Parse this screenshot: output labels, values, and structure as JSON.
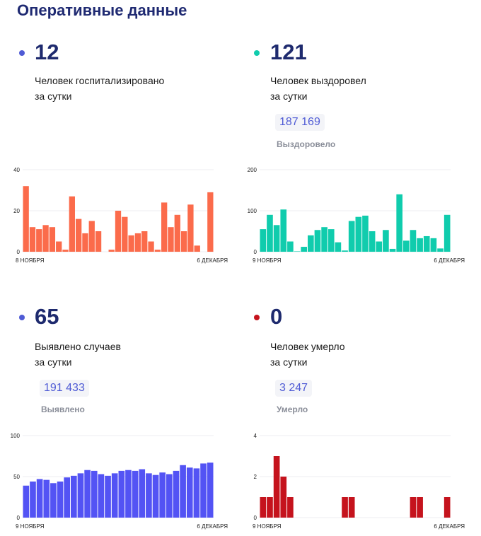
{
  "header": {
    "title": "Оперативные данные"
  },
  "colors": {
    "hospitalized": "#fb6b4b",
    "recovered": "#10ccad",
    "cases": "#5353f4",
    "deaths": "#c5131d"
  },
  "panels": {
    "hospitalized": {
      "value": "12",
      "label_line1": "Человек госпитализировано",
      "label_line2": "за сутки"
    },
    "recovered": {
      "value": "121",
      "label_line1": "Человек выздоровел",
      "label_line2": "за сутки",
      "total": "187 169",
      "total_label": "Выздоровело"
    },
    "cases": {
      "value": "65",
      "label_line1": "Выявлено случаев",
      "label_line2": "за сутки",
      "total": "191 433",
      "total_label": "Выявлено"
    },
    "deaths": {
      "value": "0",
      "label_line1": "Человек умерло",
      "label_line2": "за сутки",
      "total": "3 247",
      "total_label": "Умерло"
    }
  },
  "chart_data": [
    {
      "id": "hospitalized",
      "type": "bar",
      "ylim": [
        0,
        40
      ],
      "yticks": [
        0,
        20,
        40
      ],
      "x_start_label": "8 НОЯБРЯ",
      "x_end_label": "6 ДЕКАБРЯ",
      "values": [
        32,
        12,
        11,
        13,
        12,
        5,
        1,
        27,
        16,
        9,
        15,
        10,
        0,
        1,
        20,
        17,
        8,
        9,
        10,
        5,
        1,
        24,
        12,
        18,
        10,
        23,
        3,
        0,
        29
      ]
    },
    {
      "id": "recovered",
      "type": "bar",
      "ylim": [
        0,
        200
      ],
      "yticks": [
        0,
        100,
        200
      ],
      "x_start_label": "9 НОЯБРЯ",
      "x_end_label": "6 ДЕКАБРЯ",
      "values": [
        55,
        90,
        65,
        103,
        25,
        1,
        12,
        40,
        53,
        60,
        55,
        23,
        3,
        75,
        85,
        88,
        50,
        25,
        53,
        7,
        140,
        27,
        53,
        33,
        38,
        33,
        8,
        90
      ]
    },
    {
      "id": "cases",
      "type": "bar",
      "ylim": [
        0,
        100
      ],
      "yticks": [
        0,
        50,
        100
      ],
      "x_start_label": "9 НОЯБРЯ",
      "x_end_label": "6 ДЕКАБРЯ",
      "values": [
        39,
        44,
        47,
        46,
        42,
        44,
        49,
        51,
        54,
        58,
        57,
        53,
        51,
        54,
        57,
        58,
        57,
        59,
        54,
        52,
        55,
        53,
        57,
        64,
        61,
        60,
        66,
        67
      ]
    },
    {
      "id": "deaths",
      "type": "bar",
      "ylim": [
        0,
        4
      ],
      "yticks": [
        0,
        2,
        4
      ],
      "x_start_label": "9 НОЯБРЯ",
      "x_end_label": "6 ДЕКАБРЯ",
      "values": [
        1,
        1,
        3,
        2,
        1,
        0,
        0,
        0,
        0,
        0,
        0,
        0,
        1,
        1,
        0,
        0,
        0,
        0,
        0,
        0,
        0,
        0,
        1,
        1,
        0,
        0,
        0,
        1
      ]
    }
  ]
}
